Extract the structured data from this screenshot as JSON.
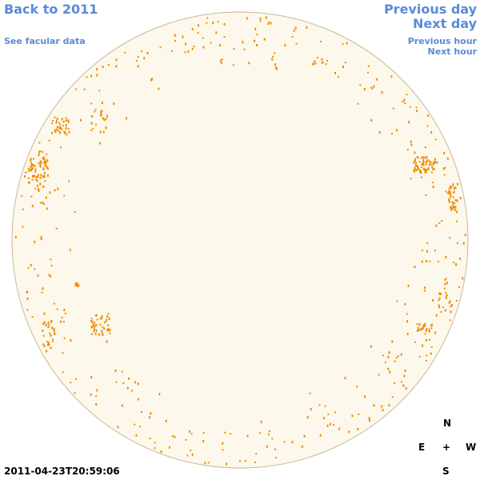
{
  "links": {
    "back": "Back to 2011",
    "facular": "See facular data",
    "previous_day": "Previous day",
    "next_day": "Next day",
    "previous_hour": "Previous hour",
    "next_hour": "Next hour"
  },
  "timestamp": "2011-04-23T20:59:06",
  "compass": {
    "north": "N",
    "east": "E",
    "center": "+",
    "west": "W",
    "south": "S"
  }
}
